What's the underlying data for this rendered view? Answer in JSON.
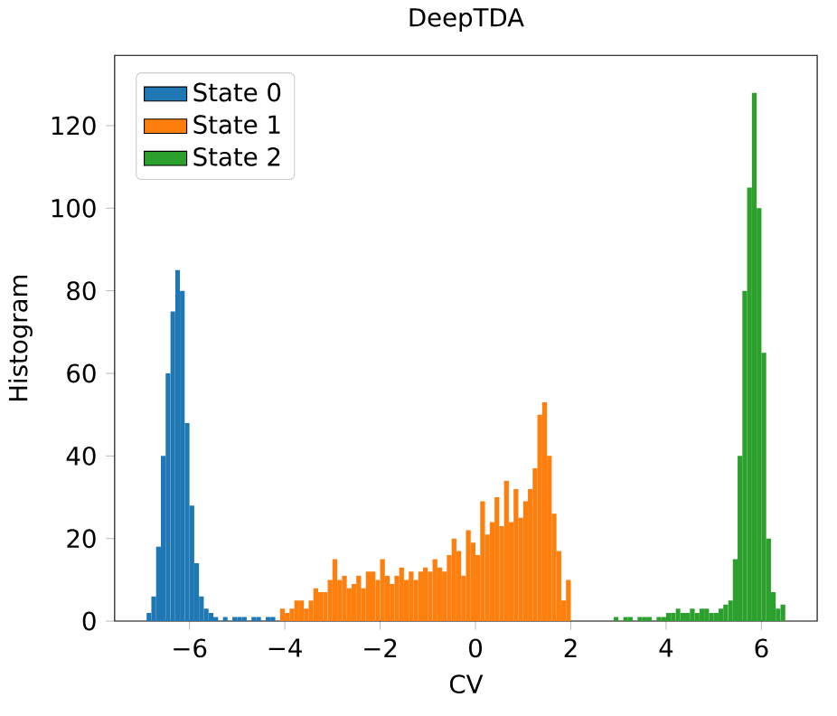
{
  "chart_data": {
    "type": "histogram",
    "title": "DeepTDA",
    "xlabel": "CV",
    "ylabel": "Histogram",
    "legend": "top left",
    "xlim": [
      -7.57,
      7.17
    ],
    "ylim": [
      0,
      137
    ],
    "xticks": [
      {
        "value": -6,
        "label": "−6"
      },
      {
        "value": -4,
        "label": "−4"
      },
      {
        "value": -2,
        "label": "−2"
      },
      {
        "value": 0,
        "label": "0"
      },
      {
        "value": 2,
        "label": "2"
      },
      {
        "value": 4,
        "label": "4"
      },
      {
        "value": 6,
        "label": "6"
      }
    ],
    "yticks": [
      {
        "value": 0,
        "label": "0"
      },
      {
        "value": 20,
        "label": "20"
      },
      {
        "value": 40,
        "label": "40"
      },
      {
        "value": 60,
        "label": "60"
      },
      {
        "value": 80,
        "label": "80"
      },
      {
        "value": 100,
        "label": "100"
      },
      {
        "value": 120,
        "label": "120"
      }
    ],
    "bins": [
      -6.9,
      -6.8,
      -6.7,
      -6.6,
      -6.5,
      -6.4,
      -6.3,
      -6.2,
      -6.1,
      -6.0,
      -5.9,
      -5.8,
      -5.7,
      -5.6,
      -5.5,
      -5.4,
      -5.3,
      -5.2,
      -5.1,
      -5.0,
      -4.9,
      -4.8,
      -4.7,
      -4.6,
      -4.5,
      -4.4,
      -4.3,
      -4.2,
      -4.1,
      -4.0,
      -3.9,
      -3.8,
      -3.7,
      -3.6,
      -3.5,
      -3.4,
      -3.3,
      -3.2,
      -3.1,
      -3.0,
      -2.9,
      -2.8,
      -2.7,
      -2.6,
      -2.5,
      -2.4,
      -2.3,
      -2.2,
      -2.1,
      -2.0,
      -1.9,
      -1.8,
      -1.7,
      -1.6,
      -1.5,
      -1.4,
      -1.3,
      -1.2,
      -1.1,
      -1.0,
      -0.9,
      -0.8,
      -0.7,
      -0.6,
      -0.5,
      -0.4,
      -0.3,
      -0.2,
      -0.1,
      0.0,
      0.1,
      0.2,
      0.3,
      0.4,
      0.5,
      0.6,
      0.7,
      0.8,
      0.9,
      1.0,
      1.1,
      1.2,
      1.3,
      1.4,
      1.5,
      1.6,
      1.7,
      1.8,
      1.9,
      2.0,
      2.1,
      2.2,
      2.3,
      2.4,
      2.5,
      2.6,
      2.7,
      2.8,
      2.9,
      3.0,
      3.1,
      3.2,
      3.3,
      3.4,
      3.5,
      3.6,
      3.7,
      3.8,
      3.9,
      4.0,
      4.1,
      4.2,
      4.3,
      4.4,
      4.5,
      4.6,
      4.7,
      4.8,
      4.9,
      5.0,
      5.1,
      5.2,
      5.3,
      5.4,
      5.5,
      5.6,
      5.7,
      5.8,
      5.9,
      6.0,
      6.1,
      6.2,
      6.3,
      6.4,
      6.5
    ],
    "series": [
      {
        "name": "State 0",
        "color": "#1f77b4",
        "values": [
          2,
          6,
          18,
          40,
          60,
          75,
          85,
          80,
          48,
          28,
          14,
          6,
          3,
          2,
          1,
          0,
          1,
          0,
          1,
          1,
          1,
          0,
          1,
          1,
          0,
          1,
          1,
          null,
          null,
          null,
          null,
          null,
          null,
          null,
          null,
          null,
          null,
          null,
          null,
          null,
          null,
          null,
          null,
          null,
          null,
          null,
          null,
          null,
          null,
          null,
          null,
          null,
          null,
          null,
          null,
          null,
          null,
          null,
          null,
          null,
          null,
          null,
          null,
          null,
          null,
          null,
          null,
          null,
          null,
          null,
          null,
          null,
          null,
          null,
          null,
          null,
          null,
          null,
          null,
          null,
          null,
          null,
          null,
          null,
          null,
          null,
          null,
          null,
          null,
          null,
          null,
          null,
          null,
          null,
          null,
          null,
          null,
          null,
          null,
          null,
          null,
          null,
          null,
          null,
          null,
          null,
          null,
          null,
          null,
          null,
          null,
          null,
          null,
          null,
          null,
          null,
          null,
          null,
          null,
          null,
          null,
          null,
          null,
          null,
          null,
          null,
          null,
          null,
          null,
          null,
          null,
          null,
          null,
          null
        ]
      },
      {
        "name": "State 1",
        "color": "#ff7f0e",
        "values": [
          null,
          null,
          null,
          null,
          null,
          null,
          null,
          null,
          null,
          null,
          null,
          null,
          null,
          null,
          null,
          null,
          null,
          null,
          null,
          null,
          null,
          null,
          null,
          null,
          null,
          null,
          null,
          null,
          3,
          2,
          3,
          5,
          5,
          3,
          5,
          8,
          7,
          7,
          10,
          15,
          10,
          11,
          8,
          9,
          11,
          8,
          12,
          12,
          10,
          15,
          11,
          9,
          11,
          13,
          10,
          12,
          10,
          12,
          13,
          12,
          15,
          13,
          12,
          16,
          20,
          17,
          11,
          22,
          19,
          16,
          29,
          21,
          24,
          30,
          23,
          34,
          24,
          32,
          25,
          29,
          32,
          37,
          50,
          53,
          40,
          26,
          17,
          5,
          10,
          null,
          null,
          null,
          null,
          null,
          null,
          null,
          null,
          null,
          null,
          null,
          null,
          null,
          null,
          null,
          null,
          null,
          null,
          null,
          null,
          null,
          null,
          null,
          null,
          null,
          null,
          null,
          null,
          null,
          null,
          null,
          null,
          null,
          null,
          null,
          null,
          null,
          null,
          null,
          null,
          null,
          null,
          null,
          null,
          null
        ]
      },
      {
        "name": "State 2",
        "color": "#2ca02c",
        "values": [
          null,
          null,
          null,
          null,
          null,
          null,
          null,
          null,
          null,
          null,
          null,
          null,
          null,
          null,
          null,
          null,
          null,
          null,
          null,
          null,
          null,
          null,
          null,
          null,
          null,
          null,
          null,
          null,
          null,
          null,
          null,
          null,
          null,
          null,
          null,
          null,
          null,
          null,
          null,
          null,
          null,
          null,
          null,
          null,
          null,
          null,
          null,
          null,
          null,
          null,
          null,
          null,
          null,
          null,
          null,
          null,
          null,
          null,
          null,
          null,
          null,
          null,
          null,
          null,
          null,
          null,
          null,
          null,
          null,
          null,
          null,
          null,
          null,
          null,
          null,
          null,
          null,
          null,
          null,
          null,
          null,
          null,
          null,
          null,
          null,
          null,
          null,
          null,
          null,
          null,
          null,
          null,
          null,
          null,
          null,
          null,
          null,
          null,
          1,
          0,
          1,
          1,
          0,
          1,
          1,
          1,
          0,
          1,
          1,
          2,
          2,
          3,
          2,
          2,
          3,
          2,
          3,
          3,
          2,
          2,
          3,
          4,
          5,
          15,
          40,
          80,
          105,
          128,
          100,
          65,
          20,
          7,
          3,
          4
        ]
      }
    ]
  }
}
